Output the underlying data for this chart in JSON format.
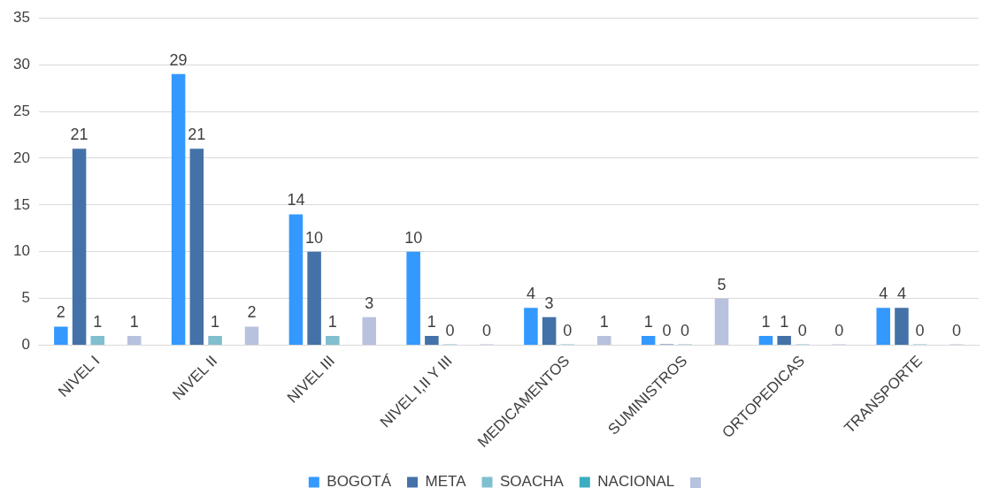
{
  "chart_data": {
    "type": "bar",
    "categories": [
      "NIVEL I",
      "NIVEL II",
      "NIVEL III",
      "NIVEL I,II Y III",
      "MEDICAMENTOS",
      "SUMINISTROS",
      "ORTOPEDICAS",
      "TRANSPORTE"
    ],
    "series": [
      {
        "name": "BOGOTÁ",
        "color": "#3399ff",
        "values": [
          2,
          29,
          14,
          10,
          4,
          1,
          1,
          4
        ]
      },
      {
        "name": "META",
        "color": "#4472a8",
        "values": [
          21,
          21,
          10,
          1,
          3,
          0,
          1,
          4
        ]
      },
      {
        "name": "SOACHA",
        "color": "#7fbfcf",
        "values": [
          1,
          1,
          1,
          0,
          0,
          0,
          0,
          0
        ]
      },
      {
        "name": "NACIONAL",
        "color": "#3aaec0",
        "values": [
          null,
          null,
          null,
          null,
          null,
          null,
          null,
          null
        ]
      },
      {
        "color": "#b8c2de",
        "values": [
          1,
          2,
          3,
          0,
          1,
          5,
          0,
          0
        ]
      }
    ],
    "ylim": [
      0,
      35
    ],
    "yticks": [
      0,
      5,
      10,
      15,
      20,
      25,
      30,
      35
    ],
    "grid": "y",
    "legend": "bottom",
    "data_labels": true
  }
}
